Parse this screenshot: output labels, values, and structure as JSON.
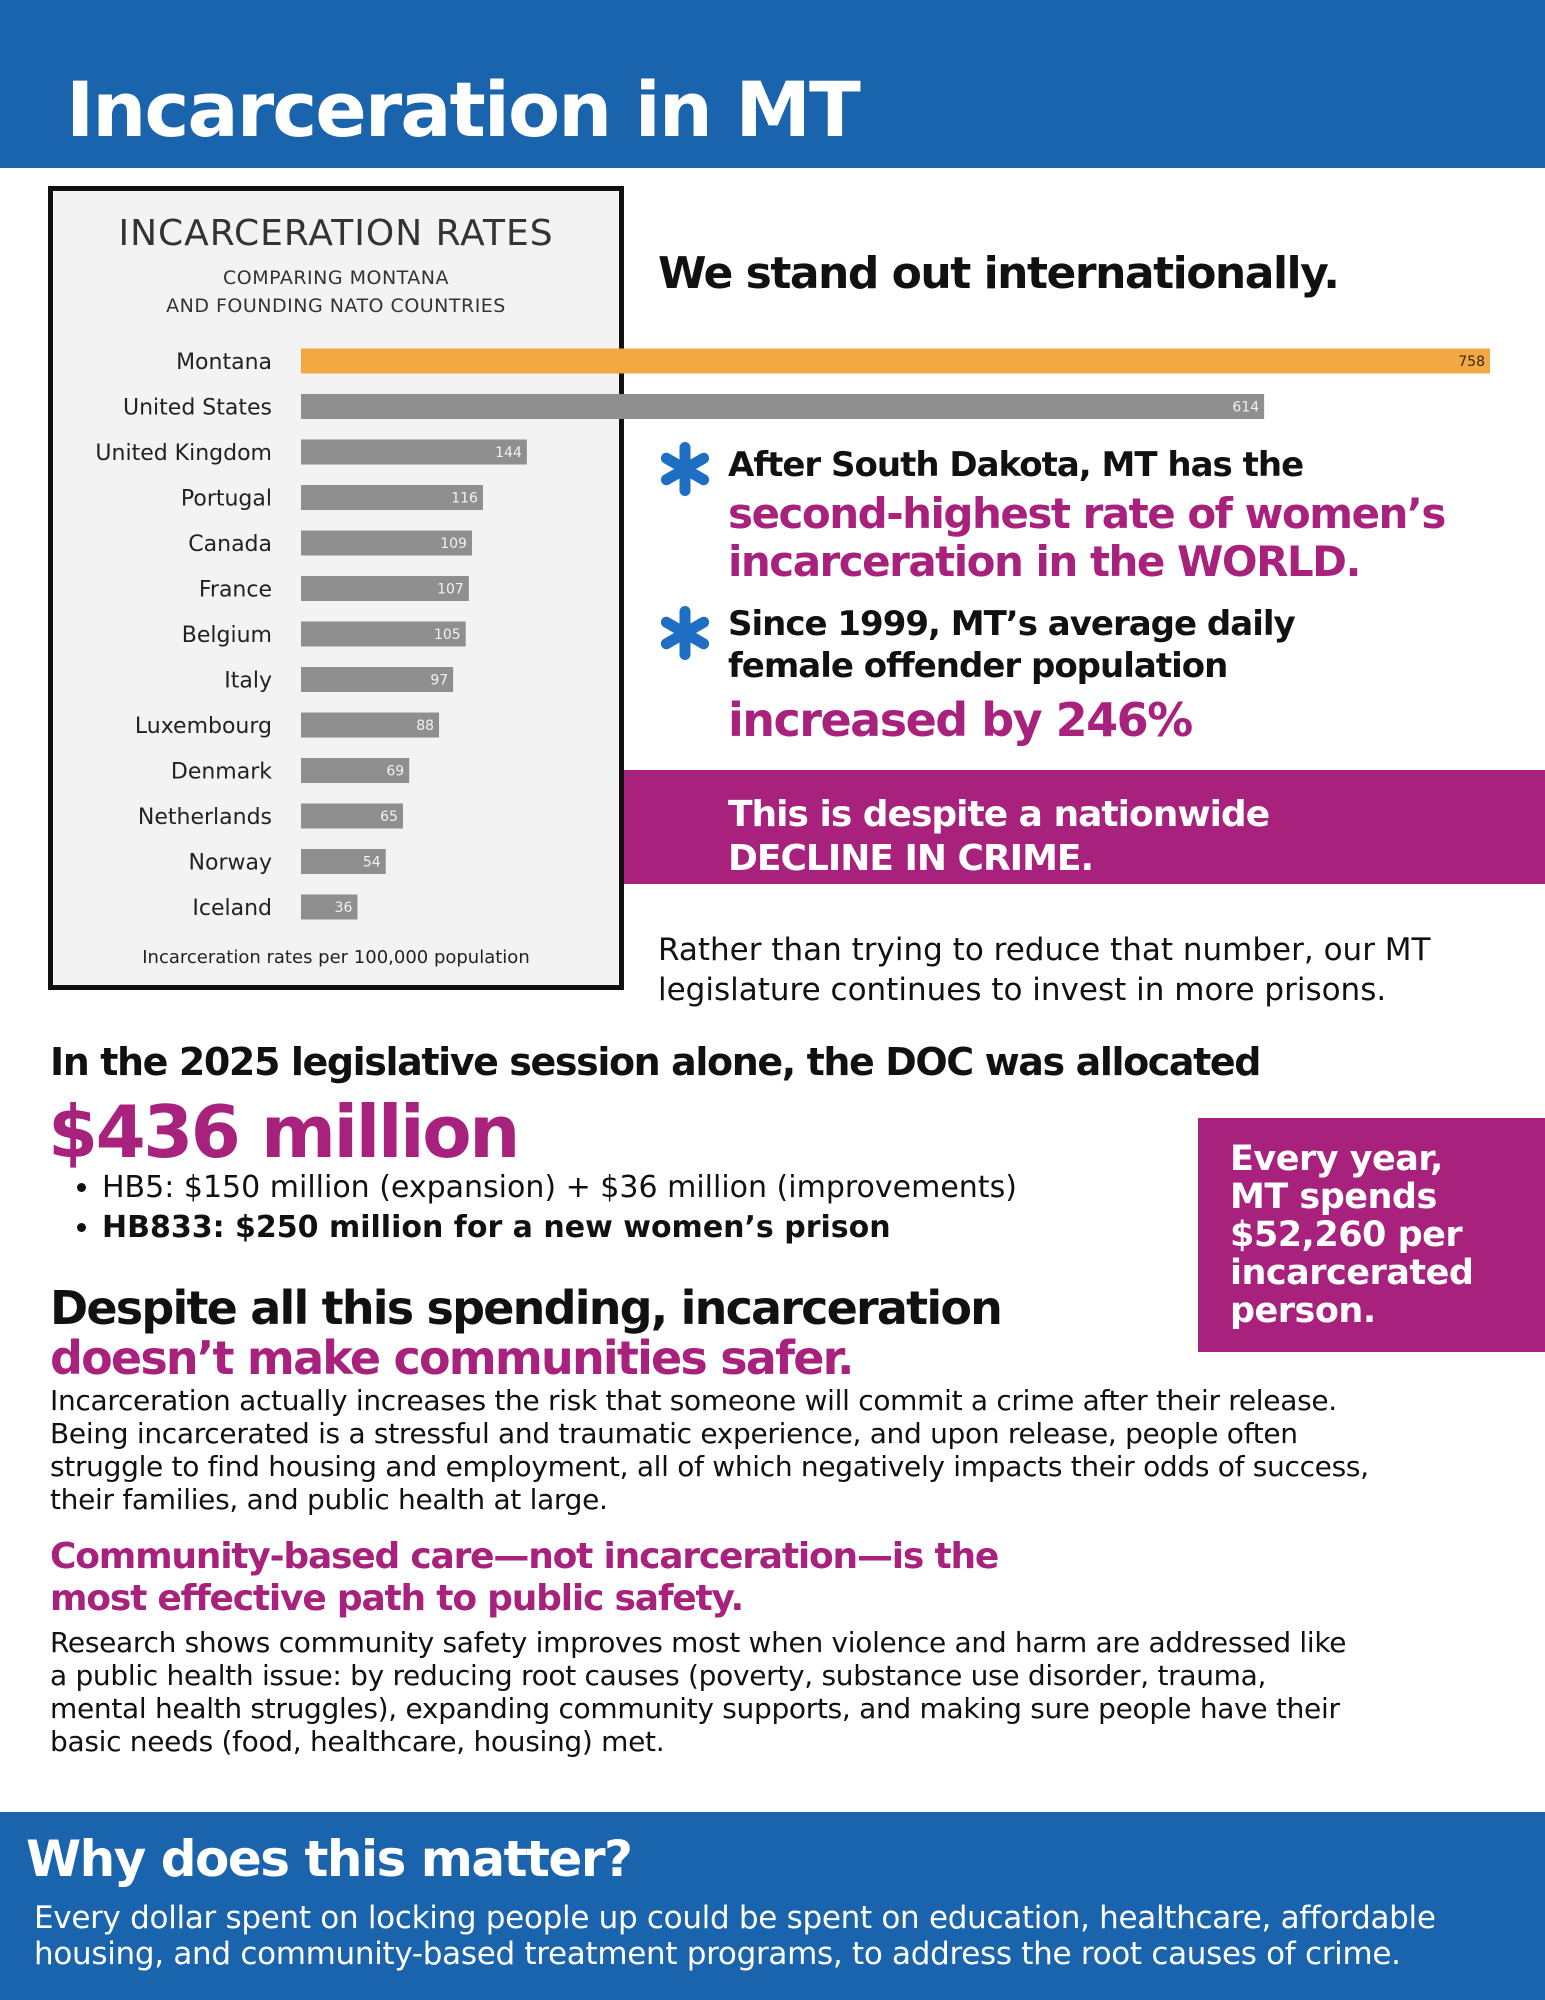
{
  "header": {
    "title": "Incarceration in MT"
  },
  "chart_data": {
    "type": "bar",
    "orientation": "horizontal",
    "title": "INCARCERATION RATES",
    "subtitle_lines": [
      "COMPARING MONTANA",
      "AND FOUNDING NATO COUNTRIES"
    ],
    "xlabel": "Incarceration rates per 100,000 population",
    "categories": [
      "Montana",
      "United States",
      "United Kingdom",
      "Portugal",
      "Canada",
      "France",
      "Belgium",
      "Italy",
      "Luxembourg",
      "Denmark",
      "Netherlands",
      "Norway",
      "Iceland"
    ],
    "values": [
      758,
      614,
      144,
      116,
      109,
      107,
      105,
      97,
      88,
      69,
      65,
      54,
      36
    ],
    "value_labels": [
      "758",
      "614",
      "144",
      "116",
      "109",
      "107",
      "105",
      "97",
      "88",
      "69",
      "65",
      "54",
      "36"
    ],
    "highlight_color": "#f2a944",
    "bar_color": "#8f8f8f",
    "grid": false,
    "legend": "none"
  },
  "intro": {
    "headline": "We stand out internationally."
  },
  "facts": [
    {
      "icon": "asterisk-icon",
      "lead": "After South Dakota, MT has the",
      "highlight_lines": [
        "second-highest rate of women’s",
        "incarceration in the WORLD."
      ]
    },
    {
      "icon": "asterisk-icon",
      "lead_lines": [
        "Since 1999, MT’s average daily",
        "female offender population"
      ],
      "highlight": "increased by 246%"
    }
  ],
  "despite_banner": {
    "lines": [
      "This is despite a nationwide",
      "DECLINE IN CRIME."
    ]
  },
  "rather": {
    "lines": [
      "Rather than trying to reduce that number, our MT",
      "legislature continues to invest in more prisons."
    ]
  },
  "spending": {
    "lead": "In the 2025 legislative session alone, the DOC was allocated",
    "amount": "$436 million",
    "items": [
      "HB5: $150 million (expansion) + $36 million (improvements)",
      "HB833: $250 million for a new women’s prison"
    ]
  },
  "cost_box": {
    "lines": [
      "Every year,",
      "MT spends",
      "$52,260 per",
      "incarcerated",
      "person."
    ]
  },
  "safety": {
    "heading_line1": "Despite all this spending, incarceration",
    "heading_line2": "doesn’t make communities safer.",
    "paragraph_lines": [
      "Incarceration actually increases the risk that someone will commit a crime after their release.",
      "Being incarcerated is a stressful and traumatic experience, and upon release, people often",
      "struggle to find housing and employment, all of which negatively impacts their odds of success,",
      "their families, and public health at large."
    ]
  },
  "care": {
    "heading_lines": [
      "Community-based care—not incarceration—is the",
      "most effective path to public safety."
    ],
    "paragraph_lines": [
      "Research shows community safety improves most when violence and harm are addressed like",
      "a public health issue: by reducing root causes (poverty, substance use disorder, trauma,",
      "mental health struggles), expanding community supports, and making sure people have their",
      "basic needs (food, healthcare, housing) met."
    ]
  },
  "footer": {
    "title": "Why does this matter?",
    "lines": [
      "Every dollar spent on locking people up could be spent on education, healthcare, affordable",
      "housing, and community-based treatment programs, to address the root causes of crime."
    ]
  },
  "colors": {
    "brand_blue": "#1a63ad",
    "accent_magenta": "#a7217d",
    "bullet_blue": "#1e6fc4"
  }
}
